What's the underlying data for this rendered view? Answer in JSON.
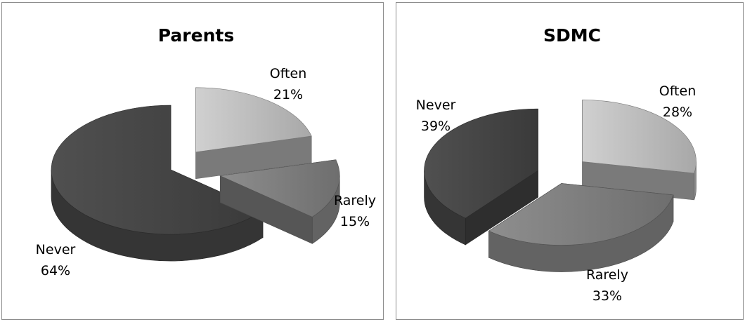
{
  "chart_data": [
    {
      "type": "pie",
      "title": "Parents",
      "categories": [
        "Often",
        "Rarely",
        "Never"
      ],
      "values": [
        21,
        15,
        64
      ],
      "labels": [
        {
          "name": "Often",
          "value": "21%"
        },
        {
          "name": "Rarely",
          "value": "15%"
        },
        {
          "name": "Never",
          "value": "64%"
        }
      ],
      "style": "3d-exploded",
      "colors": [
        "#c4c4c4",
        "#8a8a8a",
        "#4a4a4a"
      ]
    },
    {
      "type": "pie",
      "title": "SDMC",
      "categories": [
        "Often",
        "Rarely",
        "Never"
      ],
      "values": [
        28,
        33,
        39
      ],
      "labels": [
        {
          "name": "Often",
          "value": "28%"
        },
        {
          "name": "Rarely",
          "value": "33%"
        },
        {
          "name": "Never",
          "value": "39%"
        }
      ],
      "style": "3d-exploded",
      "colors": [
        "#c4c4c4",
        "#8a8a8a",
        "#4a4a4a"
      ]
    }
  ]
}
